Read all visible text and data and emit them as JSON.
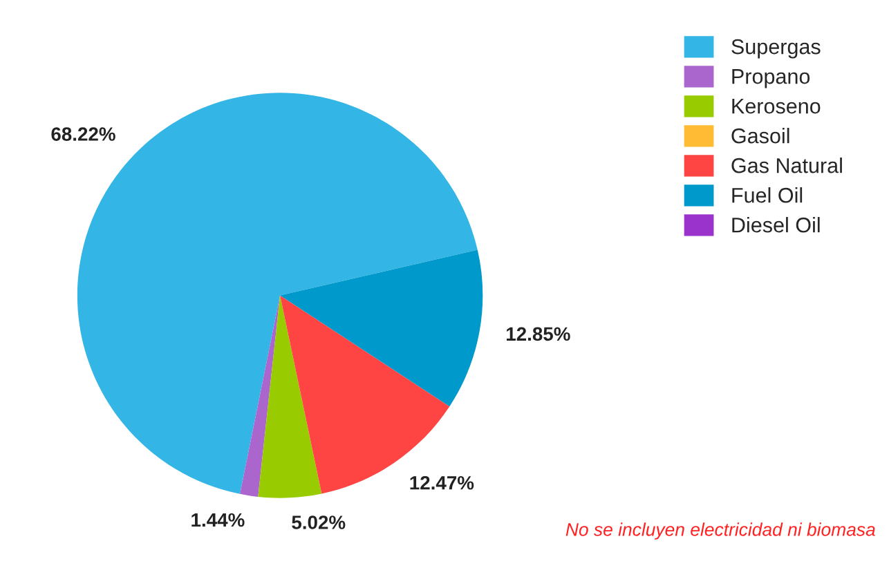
{
  "chart_data": {
    "type": "pie",
    "categories": [
      "Supergas",
      "Propano",
      "Keroseno",
      "Gasoil",
      "Gas Natural",
      "Fuel Oil",
      "Diesel Oil"
    ],
    "values": [
      68.22,
      1.44,
      5.02,
      0,
      12.47,
      12.85,
      0
    ],
    "value_labels": [
      "68.22%",
      "1.44%",
      "5.02%",
      null,
      "12.47%",
      "12.85%",
      null
    ],
    "colors": [
      "#33b5e5",
      "#aa66cc",
      "#99cc00",
      "#ffbb33",
      "#ff4444",
      "#0099cc",
      "#9933cc"
    ],
    "legend": "top right",
    "annotations": [
      "No se incluyen electricidad ni biomasa"
    ]
  }
}
